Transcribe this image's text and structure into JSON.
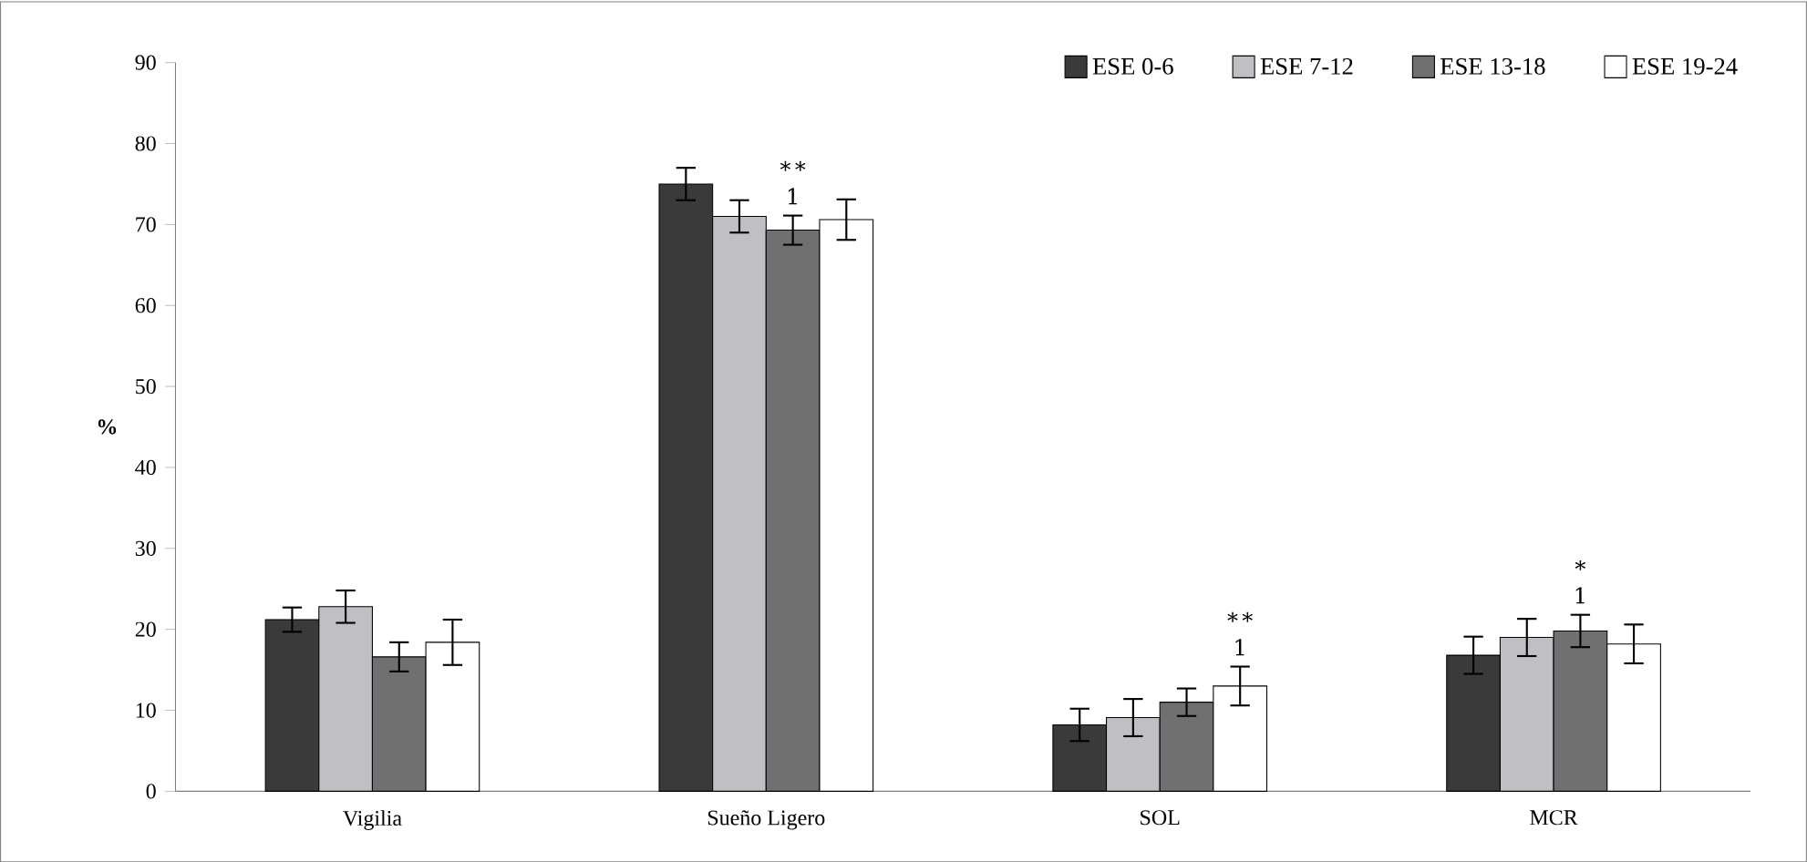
{
  "chart_data": {
    "type": "bar",
    "ylabel": "%",
    "categories": [
      "Vigilia",
      "Sueño Ligero",
      "SOL",
      "MCR"
    ],
    "series": [
      {
        "name": "ESE 0-6",
        "color": "#3a3a3a",
        "values": [
          21.2,
          75,
          8.2,
          16.8
        ],
        "errors": [
          1.5,
          2,
          2,
          2.3
        ]
      },
      {
        "name": "ESE 7-12",
        "color": "#c0c0c4",
        "values": [
          22.8,
          71,
          9.1,
          19
        ],
        "errors": [
          2,
          2,
          2.3,
          2.3
        ]
      },
      {
        "name": "ESE 13-18",
        "color": "#707070",
        "values": [
          16.6,
          69.3,
          11,
          19.8
        ],
        "errors": [
          1.8,
          1.8,
          1.7,
          2
        ]
      },
      {
        "name": "ESE 19-24",
        "color": "#ffffff",
        "values": [
          18.4,
          70.6,
          13,
          18.2
        ],
        "errors": [
          2.8,
          2.5,
          2.4,
          2.4
        ]
      }
    ],
    "ylim": [
      0,
      90
    ],
    "yticks": [
      0,
      10,
      20,
      30,
      40,
      50,
      60,
      70,
      80,
      90
    ],
    "annotations": [
      "∗∗",
      "1",
      "∗∗",
      "1",
      "∗",
      "1"
    ],
    "legend": "top right",
    "grid": false
  }
}
